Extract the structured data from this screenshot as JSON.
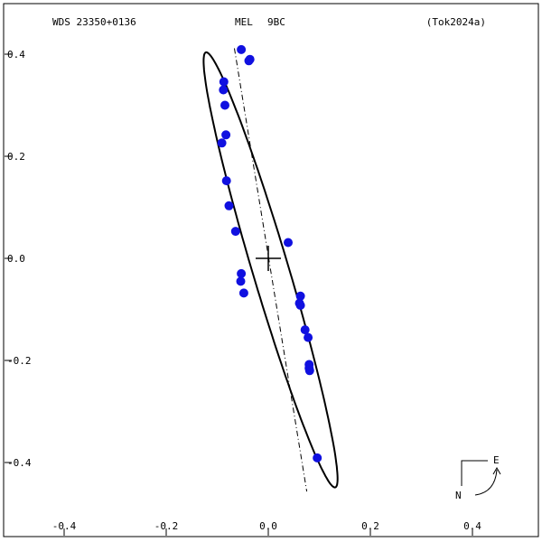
{
  "header": {
    "left": "WDS 23350+0136",
    "center_a": "MEL",
    "center_b": "9BC",
    "right": "(Tok2024a)"
  },
  "compass": {
    "east_label": "E",
    "north_label": "N"
  },
  "chart_data": {
    "type": "scatter",
    "title": "",
    "xlabel": "",
    "ylabel": "",
    "xlim": [
      -0.5,
      0.5
    ],
    "ylim": [
      -0.55,
      0.5
    ],
    "x_ticks": [
      -0.4,
      -0.2,
      0.0,
      0.2,
      0.4
    ],
    "x_tick_labels": [
      "-0.4",
      "-0.2",
      "0.0",
      "0.2",
      "0.4"
    ],
    "y_ticks": [
      0.4,
      0.2,
      0.0,
      -0.2,
      -0.4
    ],
    "y_tick_labels": [
      "0.4",
      "0.2",
      "0.0",
      "-0.2",
      "-0.4"
    ],
    "grid": false,
    "primary": {
      "x": 0.0,
      "y": 0.0,
      "marker": "cross"
    },
    "orbit": {
      "center": [
        0.0045,
        -0.0226
      ],
      "semi_major": 0.4446,
      "semi_minor": 0.0354,
      "position_angle_deg": 16.57,
      "line_of_apsides": {
        "from": [
          -0.0664,
          0.4115
        ],
        "to": [
          0.0754,
          -0.4567
        ]
      }
    },
    "series": [
      {
        "marker_color": "#1010e0",
        "points": [
          {
            "x": -0.053,
            "y": 0.409
          },
          {
            "x": -0.036,
            "y": 0.39
          },
          {
            "x": -0.038,
            "y": 0.387
          },
          {
            "x": -0.087,
            "y": 0.346
          },
          {
            "x": -0.088,
            "y": 0.33
          },
          {
            "x": -0.085,
            "y": 0.3
          },
          {
            "x": -0.083,
            "y": 0.242
          },
          {
            "x": -0.091,
            "y": 0.226
          },
          {
            "x": -0.082,
            "y": 0.152
          },
          {
            "x": -0.077,
            "y": 0.103
          },
          {
            "x": -0.064,
            "y": 0.053
          },
          {
            "x": 0.039,
            "y": 0.031
          },
          {
            "x": -0.053,
            "y": -0.03
          },
          {
            "x": -0.054,
            "y": -0.045
          },
          {
            "x": -0.048,
            "y": -0.068
          },
          {
            "x": 0.063,
            "y": -0.074
          },
          {
            "x": 0.061,
            "y": -0.088
          },
          {
            "x": 0.063,
            "y": -0.092
          },
          {
            "x": 0.072,
            "y": -0.14
          },
          {
            "x": 0.078,
            "y": -0.155
          },
          {
            "x": 0.08,
            "y": -0.208
          },
          {
            "x": 0.08,
            "y": -0.215
          },
          {
            "x": 0.081,
            "y": -0.22
          },
          {
            "x": 0.096,
            "y": -0.391
          }
        ]
      }
    ]
  }
}
